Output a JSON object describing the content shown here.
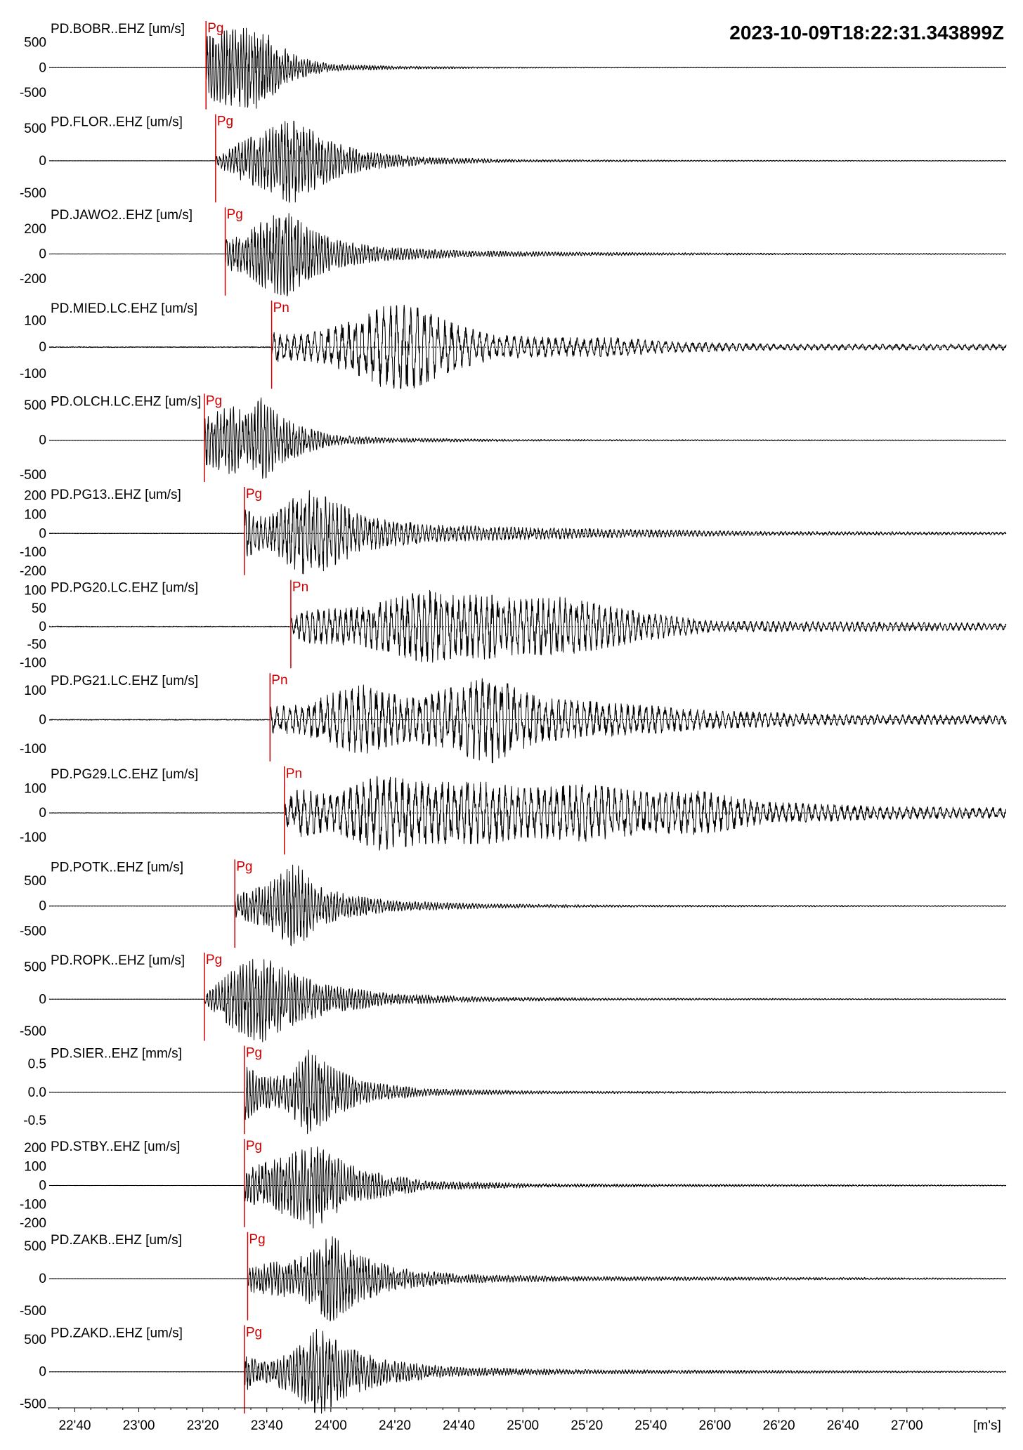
{
  "chart_data": {
    "type": "line",
    "title": "2023-10-09T18:22:31.343899Z",
    "x_unit_label": "[m's]",
    "x_ticks": [
      "22'40",
      "23'00",
      "23'20",
      "23'40",
      "24'00",
      "24'20",
      "24'40",
      "25'00",
      "25'20",
      "25'40",
      "26'00",
      "26'20",
      "26'40",
      "27'00"
    ],
    "x_tick_seconds": [
      1360,
      1380,
      1400,
      1420,
      1440,
      1460,
      1480,
      1500,
      1520,
      1540,
      1560,
      1580,
      1600,
      1620
    ],
    "xlim_seconds": [
      1352,
      1651
    ],
    "grid": false,
    "legend": "none",
    "traces": [
      {
        "name": "PD.BOBR..EHZ [um/s]",
        "phase": "Pg",
        "pick_seconds": 1401,
        "yticks": [
          "500",
          "0",
          "-500"
        ],
        "ytick_values": [
          500,
          0,
          -500
        ],
        "ylim": [
          -900,
          900
        ],
        "amp": 820,
        "env": [
          [
            1401,
            0.75
          ],
          [
            1407,
            0.9
          ],
          [
            1418,
            1.0
          ],
          [
            1424,
            0.55
          ],
          [
            1430,
            0.25
          ],
          [
            1440,
            0.09
          ],
          [
            1460,
            0.04
          ],
          [
            1490,
            0.015
          ],
          [
            1520,
            0.008
          ],
          [
            1651,
            0.003
          ]
        ],
        "period": 0.9,
        "noise": 0.003
      },
      {
        "name": "PD.FLOR..EHZ [um/s]",
        "phase": "Pg",
        "pick_seconds": 1404,
        "yticks": [
          "500",
          "0",
          "-500"
        ],
        "ytick_values": [
          500,
          0,
          -500
        ],
        "ylim": [
          -700,
          700
        ],
        "amp": 670,
        "env": [
          [
            1404,
            0.1
          ],
          [
            1412,
            0.45
          ],
          [
            1420,
            0.7
          ],
          [
            1428,
            1.0
          ],
          [
            1434,
            0.7
          ],
          [
            1440,
            0.45
          ],
          [
            1450,
            0.22
          ],
          [
            1470,
            0.08
          ],
          [
            1500,
            0.03
          ],
          [
            1550,
            0.015
          ],
          [
            1651,
            0.006
          ]
        ],
        "period": 1.0,
        "noise": 0.004
      },
      {
        "name": "PD.JAWO2..EHZ [um/s]",
        "phase": "Pg",
        "pick_seconds": 1407,
        "yticks": [
          "200",
          "0",
          "-200"
        ],
        "ytick_values": [
          200,
          0,
          -200
        ],
        "ylim": [
          -360,
          360
        ],
        "amp": 340,
        "env": [
          [
            1407,
            0.35
          ],
          [
            1414,
            0.5
          ],
          [
            1420,
            0.85
          ],
          [
            1426,
            1.0
          ],
          [
            1434,
            0.55
          ],
          [
            1442,
            0.32
          ],
          [
            1455,
            0.16
          ],
          [
            1480,
            0.08
          ],
          [
            1520,
            0.04
          ],
          [
            1570,
            0.02
          ],
          [
            1651,
            0.01
          ]
        ],
        "period": 1.0,
        "noise": 0.004
      },
      {
        "name": "PD.MIED.LC.EHZ [um/s]",
        "phase": "Pn",
        "pick_seconds": 1421.5,
        "yticks": [
          "100",
          "0",
          "-100"
        ],
        "ytick_values": [
          100,
          0,
          -100
        ],
        "ylim": [
          -170,
          170
        ],
        "amp": 160,
        "env": [
          [
            1421.5,
            0.35
          ],
          [
            1430,
            0.3
          ],
          [
            1438,
            0.4
          ],
          [
            1450,
            0.7
          ],
          [
            1456,
            0.95
          ],
          [
            1465,
            1.0
          ],
          [
            1472,
            0.75
          ],
          [
            1480,
            0.5
          ],
          [
            1492,
            0.28
          ],
          [
            1510,
            0.22
          ],
          [
            1530,
            0.22
          ],
          [
            1545,
            0.13
          ],
          [
            1580,
            0.07
          ],
          [
            1651,
            0.07
          ]
        ],
        "period": 2.2,
        "noise": 0.02
      },
      {
        "name": "PD.OLCH.LC.EHZ [um/s]",
        "phase": "Pg",
        "pick_seconds": 1400.5,
        "yticks": [
          "500",
          "0",
          "-500"
        ],
        "ytick_values": [
          500,
          0,
          -500
        ],
        "ylim": [
          -650,
          650
        ],
        "amp": 620,
        "env": [
          [
            1400.5,
            0.55
          ],
          [
            1409,
            0.8
          ],
          [
            1415,
            0.6
          ],
          [
            1418,
            1.0
          ],
          [
            1424,
            0.55
          ],
          [
            1432,
            0.3
          ],
          [
            1440,
            0.12
          ],
          [
            1460,
            0.05
          ],
          [
            1500,
            0.02
          ],
          [
            1651,
            0.006
          ]
        ],
        "period": 1.0,
        "noise": 0.004
      },
      {
        "name": "PD.PG13..EHZ [um/s]",
        "phase": "Pg",
        "pick_seconds": 1413,
        "yticks": [
          "200",
          "100",
          "0",
          "-100",
          "-200"
        ],
        "ytick_values": [
          200,
          100,
          0,
          -100,
          -200
        ],
        "ylim": [
          -240,
          240
        ],
        "amp": 230,
        "env": [
          [
            1413,
            0.55
          ],
          [
            1420,
            0.35
          ],
          [
            1428,
            0.8
          ],
          [
            1433,
            1.0
          ],
          [
            1440,
            0.8
          ],
          [
            1450,
            0.4
          ],
          [
            1470,
            0.2
          ],
          [
            1500,
            0.14
          ],
          [
            1530,
            0.1
          ],
          [
            1570,
            0.05
          ],
          [
            1651,
            0.03
          ]
        ],
        "period": 1.3,
        "noise": 0.01
      },
      {
        "name": "PD.PG20.LC.EHZ [um/s]",
        "phase": "Pn",
        "pick_seconds": 1427.5,
        "yticks": [
          "100",
          "50",
          "0",
          "-50",
          "-100"
        ],
        "ytick_values": [
          100,
          50,
          0,
          -50,
          -100
        ],
        "ylim": [
          -125,
          125
        ],
        "amp": 120,
        "env": [
          [
            1427.5,
            0.2
          ],
          [
            1433,
            0.38
          ],
          [
            1450,
            0.45
          ],
          [
            1470,
            0.85
          ],
          [
            1480,
            0.7
          ],
          [
            1488,
            0.75
          ],
          [
            1500,
            0.62
          ],
          [
            1512,
            0.68
          ],
          [
            1525,
            0.5
          ],
          [
            1540,
            0.3
          ],
          [
            1560,
            0.12
          ],
          [
            1585,
            0.12
          ],
          [
            1651,
            0.08
          ]
        ],
        "period": 1.8,
        "noise": 0.02
      },
      {
        "name": "PD.PG21.LC.EHZ [um/s]",
        "phase": "Pn",
        "pick_seconds": 1421,
        "yticks": [
          "100",
          "0",
          "-100"
        ],
        "ytick_values": [
          100,
          0,
          -100
        ],
        "ylim": [
          -155,
          155
        ],
        "amp": 150,
        "env": [
          [
            1421,
            0.3
          ],
          [
            1432,
            0.35
          ],
          [
            1440,
            0.6
          ],
          [
            1450,
            0.8
          ],
          [
            1458,
            0.6
          ],
          [
            1466,
            0.5
          ],
          [
            1476,
            0.7
          ],
          [
            1490,
            1.0
          ],
          [
            1505,
            0.5
          ],
          [
            1520,
            0.42
          ],
          [
            1540,
            0.32
          ],
          [
            1560,
            0.2
          ],
          [
            1600,
            0.12
          ],
          [
            1651,
            0.1
          ]
        ],
        "period": 2.0,
        "noise": 0.02
      },
      {
        "name": "PD.PG29.LC.EHZ [um/s]",
        "phase": "Pn",
        "pick_seconds": 1425.5,
        "yticks": [
          "100",
          "0",
          "-100"
        ],
        "ytick_values": [
          100,
          0,
          -100
        ],
        "ylim": [
          -185,
          185
        ],
        "amp": 180,
        "env": [
          [
            1425.5,
            0.25
          ],
          [
            1430,
            0.55
          ],
          [
            1440,
            0.4
          ],
          [
            1455,
            0.85
          ],
          [
            1470,
            0.7
          ],
          [
            1490,
            0.7
          ],
          [
            1500,
            0.55
          ],
          [
            1520,
            0.65
          ],
          [
            1540,
            0.45
          ],
          [
            1555,
            0.5
          ],
          [
            1575,
            0.25
          ],
          [
            1610,
            0.15
          ],
          [
            1651,
            0.12
          ]
        ],
        "period": 2.1,
        "noise": 0.01
      },
      {
        "name": "PD.POTK..EHZ [um/s]",
        "phase": "Pg",
        "pick_seconds": 1410,
        "yticks": [
          "500",
          "0",
          "-500"
        ],
        "ytick_values": [
          500,
          0,
          -500
        ],
        "ylim": [
          -900,
          900
        ],
        "amp": 860,
        "env": [
          [
            1410,
            0.25
          ],
          [
            1420,
            0.5
          ],
          [
            1429,
            1.0
          ],
          [
            1436,
            0.45
          ],
          [
            1446,
            0.25
          ],
          [
            1460,
            0.12
          ],
          [
            1490,
            0.05
          ],
          [
            1530,
            0.025
          ],
          [
            1651,
            0.008
          ]
        ],
        "period": 1.0,
        "noise": 0.003
      },
      {
        "name": "PD.ROPK..EHZ [um/s]",
        "phase": "Pg",
        "pick_seconds": 1400.5,
        "yticks": [
          "500",
          "0",
          "-500"
        ],
        "ytick_values": [
          500,
          0,
          -500
        ],
        "ylim": [
          -700,
          700
        ],
        "amp": 680,
        "env": [
          [
            1400.5,
            0.1
          ],
          [
            1410,
            0.7
          ],
          [
            1418,
            1.0
          ],
          [
            1428,
            0.6
          ],
          [
            1440,
            0.3
          ],
          [
            1460,
            0.12
          ],
          [
            1490,
            0.05
          ],
          [
            1530,
            0.025
          ],
          [
            1651,
            0.008
          ]
        ],
        "period": 1.0,
        "noise": 0.004
      },
      {
        "name": "PD.SIER..EHZ [mm/s]",
        "phase": "Pg",
        "pick_seconds": 1413,
        "yticks": [
          "0.5",
          "0.0",
          "-0.5"
        ],
        "ytick_values": [
          0.5,
          0,
          -0.5
        ],
        "ylim": [
          -0.8,
          0.8
        ],
        "amp": 0.75,
        "env": [
          [
            1413,
            0.7
          ],
          [
            1418,
            0.35
          ],
          [
            1426,
            0.4
          ],
          [
            1433,
            1.0
          ],
          [
            1440,
            0.6
          ],
          [
            1450,
            0.25
          ],
          [
            1470,
            0.08
          ],
          [
            1510,
            0.03
          ],
          [
            1651,
            0.008
          ]
        ],
        "period": 1.0,
        "noise": 0.003
      },
      {
        "name": "PD.STBY..EHZ [um/s]",
        "phase": "Pg",
        "pick_seconds": 1413,
        "yticks": [
          "200",
          "100",
          "0",
          "-100",
          "-200"
        ],
        "ytick_values": [
          200,
          100,
          0,
          -100,
          -200
        ],
        "ylim": [
          -240,
          240
        ],
        "amp": 230,
        "env": [
          [
            1413,
            0.35
          ],
          [
            1420,
            0.55
          ],
          [
            1427,
            0.7
          ],
          [
            1435,
            1.0
          ],
          [
            1440,
            0.7
          ],
          [
            1450,
            0.35
          ],
          [
            1470,
            0.1
          ],
          [
            1510,
            0.04
          ],
          [
            1651,
            0.01
          ]
        ],
        "period": 1.0,
        "noise": 0.003
      },
      {
        "name": "PD.ZAKB..EHZ [um/s]",
        "phase": "Pg",
        "pick_seconds": 1414,
        "yticks": [
          "500",
          "0",
          "-500"
        ],
        "ytick_values": [
          500,
          0,
          -500
        ],
        "ylim": [
          -700,
          700
        ],
        "amp": 680,
        "env": [
          [
            1414,
            0.3
          ],
          [
            1425,
            0.4
          ],
          [
            1433,
            0.55
          ],
          [
            1440,
            1.0
          ],
          [
            1448,
            0.55
          ],
          [
            1460,
            0.25
          ],
          [
            1480,
            0.1
          ],
          [
            1520,
            0.05
          ],
          [
            1651,
            0.012
          ]
        ],
        "period": 1.0,
        "noise": 0.003
      },
      {
        "name": "PD.ZAKD..EHZ [um/s]",
        "phase": "Pg",
        "pick_seconds": 1413,
        "yticks": [
          "500",
          "0",
          "-500"
        ],
        "ytick_values": [
          500,
          0,
          -500
        ],
        "ylim": [
          -700,
          700
        ],
        "amp": 680,
        "env": [
          [
            1413,
            0.45
          ],
          [
            1418,
            0.25
          ],
          [
            1428,
            0.45
          ],
          [
            1436,
            1.0
          ],
          [
            1445,
            0.55
          ],
          [
            1458,
            0.25
          ],
          [
            1480,
            0.1
          ],
          [
            1520,
            0.05
          ],
          [
            1651,
            0.012
          ]
        ],
        "period": 1.0,
        "noise": 0.003
      }
    ]
  }
}
